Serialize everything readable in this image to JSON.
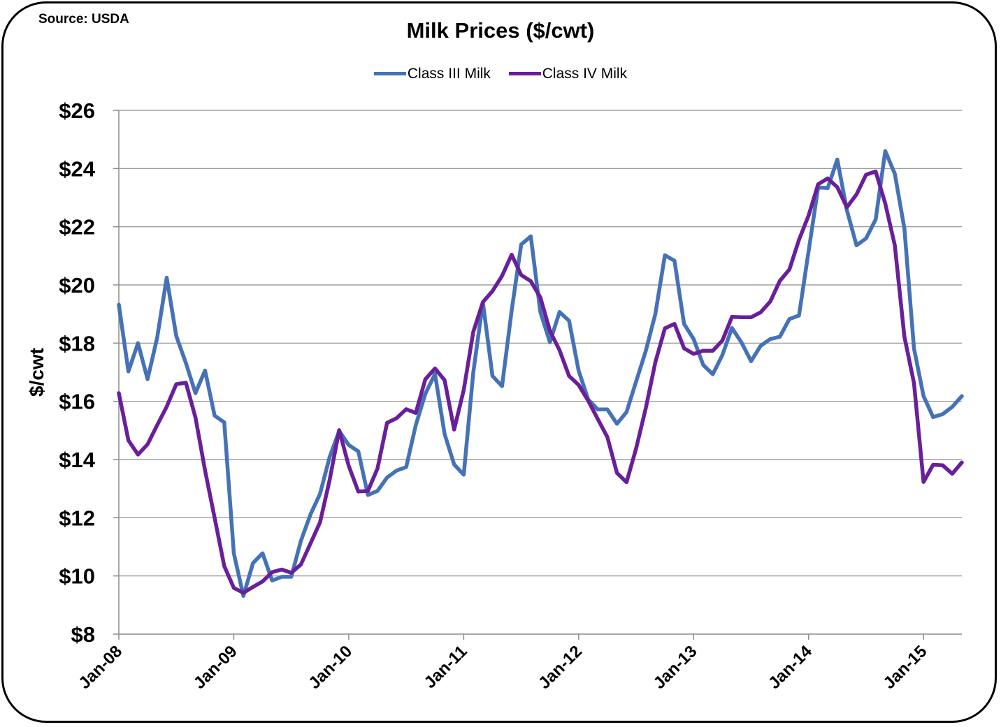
{
  "source": "Source: USDA",
  "chart_data": {
    "type": "line",
    "title": "Milk Prices ($/cwt)",
    "ylabel": "$/cwt",
    "xlabel": "",
    "ylim": [
      8,
      26
    ],
    "y_ticks": [
      "$8",
      "$10",
      "$12",
      "$14",
      "$16",
      "$18",
      "$20",
      "$22",
      "$24",
      "$26"
    ],
    "x_ticks": [
      "Jan-08",
      "Jan-09",
      "Jan-10",
      "Jan-11",
      "Jan-12",
      "Jan-13",
      "Jan-14",
      "Jan-15"
    ],
    "grid": true,
    "legend": "top-center",
    "series": [
      {
        "name": "Class III Milk",
        "color": "#4572B7",
        "values": [
          19.32,
          17.03,
          18.0,
          16.76,
          18.18,
          20.25,
          18.24,
          17.32,
          16.28,
          17.06,
          15.51,
          15.28,
          10.78,
          9.31,
          10.44,
          10.78,
          9.84,
          9.97,
          9.97,
          11.2,
          12.11,
          12.82,
          14.08,
          14.98,
          14.5,
          14.28,
          12.78,
          12.92,
          13.38,
          13.62,
          13.74,
          15.18,
          16.26,
          16.94,
          14.88,
          13.83,
          13.48,
          17.0,
          19.4,
          16.87,
          16.52,
          19.11,
          21.39,
          21.67,
          19.07,
          18.03,
          19.07,
          18.77,
          17.05,
          16.06,
          15.72,
          15.72,
          15.23,
          15.63,
          16.68,
          17.73,
          19.0,
          21.02,
          20.83,
          18.66,
          18.14,
          17.25,
          16.93,
          17.59,
          18.52,
          18.02,
          17.38,
          17.91,
          18.14,
          18.22,
          18.83,
          18.95,
          21.15,
          23.35,
          23.33,
          24.31,
          22.57,
          21.36,
          21.6,
          22.25,
          24.6,
          23.82,
          21.94,
          17.82,
          16.18,
          15.46,
          15.56,
          15.81,
          16.18
        ]
      },
      {
        "name": "Class IV Milk",
        "color": "#6A1F9A",
        "values": [
          16.28,
          14.66,
          14.17,
          14.52,
          15.18,
          15.82,
          16.59,
          16.64,
          15.45,
          13.63,
          12.0,
          10.34,
          9.59,
          9.42,
          9.62,
          9.81,
          10.13,
          10.22,
          10.11,
          10.39,
          11.11,
          11.84,
          13.29,
          15.01,
          13.78,
          12.9,
          12.92,
          13.69,
          15.26,
          15.42,
          15.73,
          15.6,
          16.76,
          17.13,
          16.73,
          15.03,
          16.39,
          18.39,
          19.41,
          19.79,
          20.31,
          21.04,
          20.34,
          20.13,
          19.57,
          18.42,
          17.76,
          16.87,
          16.56,
          16.02,
          15.39,
          14.77,
          13.54,
          13.22,
          14.38,
          15.76,
          17.34,
          18.51,
          18.66,
          17.82,
          17.63,
          17.74,
          17.74,
          18.09,
          18.9,
          18.89,
          18.89,
          19.06,
          19.43,
          20.14,
          20.53,
          21.55,
          22.38,
          23.46,
          23.66,
          23.36,
          22.67,
          23.11,
          23.79,
          23.9,
          22.8,
          21.36,
          18.22,
          16.63,
          13.23,
          13.82,
          13.8,
          13.51,
          13.9
        ]
      }
    ]
  }
}
